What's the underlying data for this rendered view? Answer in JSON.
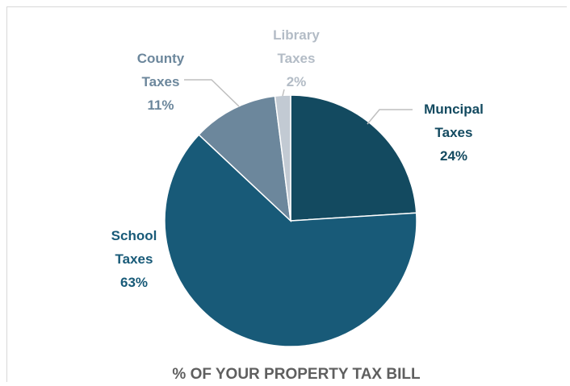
{
  "chart_data": {
    "type": "pie",
    "title": "% OF YOUR PROPERTY TAX BILL",
    "slices": [
      {
        "category": "Muncipal Taxes",
        "label_lines": [
          "Muncipal",
          "Taxes"
        ],
        "value_label": "24%",
        "value": 24,
        "color": "#134a60",
        "text_color": "#134a60"
      },
      {
        "category": "School Taxes",
        "label_lines": [
          "School",
          "Taxes"
        ],
        "value_label": "63%",
        "value": 63,
        "color": "#185a78",
        "text_color": "#185a78"
      },
      {
        "category": "County Taxes",
        "label_lines": [
          "County",
          "Taxes"
        ],
        "value_label": "11%",
        "value": 11,
        "color": "#6c879c",
        "text_color": "#6c879c"
      },
      {
        "category": "Library Taxes",
        "label_lines": [
          "Library",
          "Taxes"
        ],
        "value_label": "2%",
        "value": 2,
        "color": "#c2cad3",
        "text_color": "#b3bcc6"
      }
    ],
    "start_angle_deg": 0,
    "direction": "clockwise",
    "legend": "none",
    "data_labels": "outside with leader lines"
  }
}
